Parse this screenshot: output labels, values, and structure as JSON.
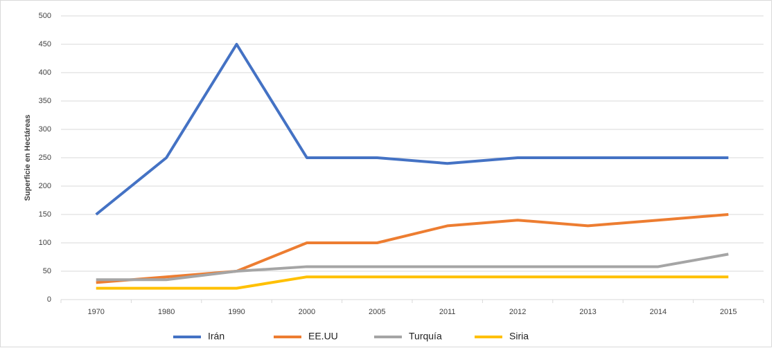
{
  "chart_data": {
    "type": "line",
    "ylabel": "Superficie en Hectáreas",
    "categories": [
      "1970",
      "1980",
      "1990",
      "2000",
      "2005",
      "2011",
      "2012",
      "2013",
      "2014",
      "2015"
    ],
    "series": [
      {
        "name": "Irán",
        "color": "#4472c4",
        "values": [
          150,
          250,
          450,
          250,
          250,
          240,
          250,
          250,
          250,
          250
        ]
      },
      {
        "name": "EE.UU",
        "color": "#ed7d31",
        "values": [
          30,
          40,
          50,
          100,
          100,
          130,
          140,
          130,
          140,
          150
        ]
      },
      {
        "name": "Turquía",
        "color": "#a5a5a5",
        "values": [
          35,
          35,
          50,
          58,
          58,
          58,
          58,
          58,
          58,
          80
        ]
      },
      {
        "name": "Siria",
        "color": "#ffc000",
        "values": [
          20,
          20,
          20,
          40,
          40,
          40,
          40,
          40,
          40,
          40
        ]
      }
    ],
    "ylim": [
      0,
      500
    ],
    "yticks": [
      0,
      50,
      100,
      150,
      200,
      250,
      300,
      350,
      400,
      450,
      500
    ],
    "grid": true,
    "legend": "bottom"
  }
}
